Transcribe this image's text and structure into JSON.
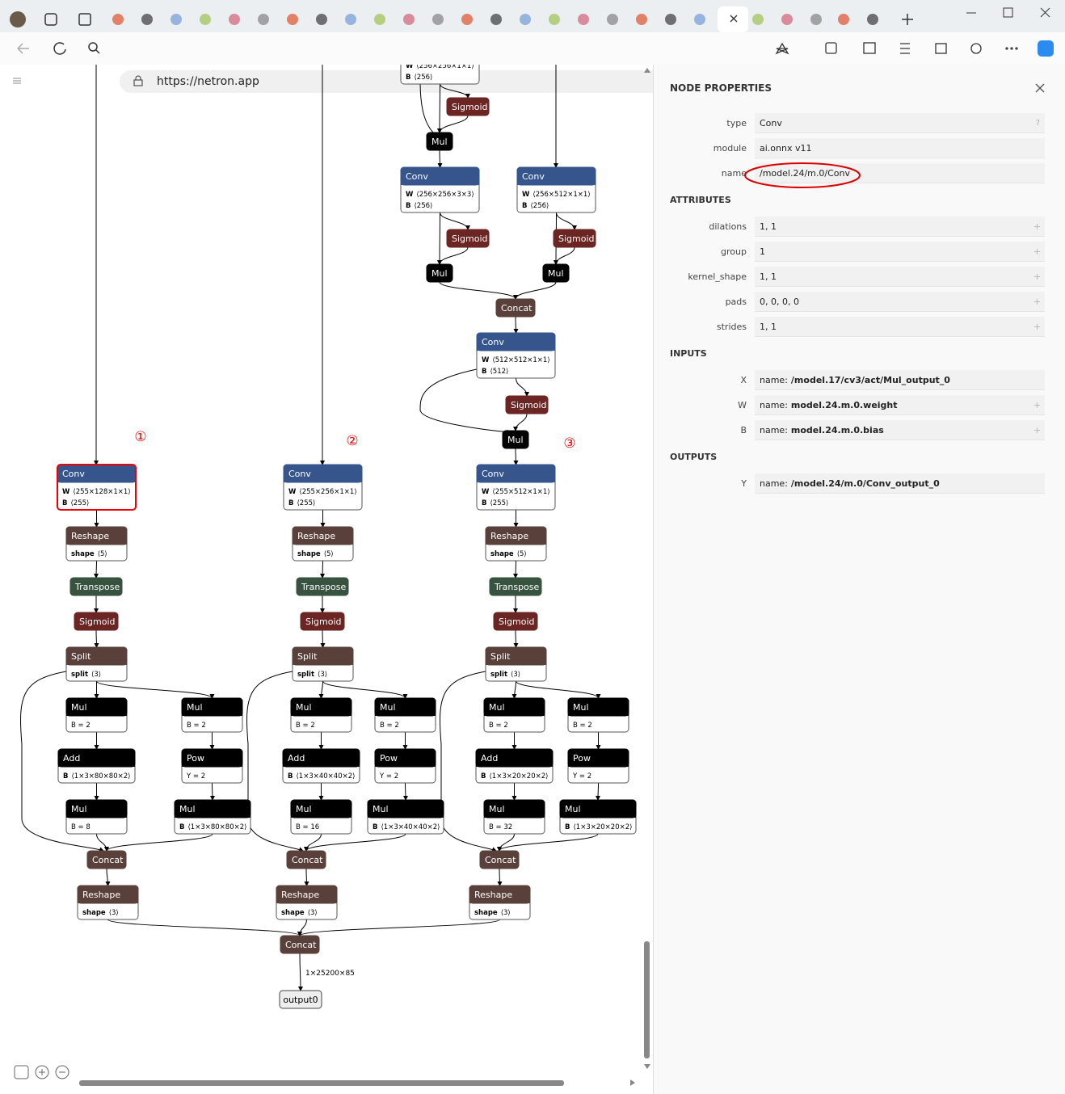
{
  "browser": {
    "url": "https://netron.app"
  },
  "graph": {
    "nodes": [
      {
        "color": "#ffffff",
        "attributes": [
          {
            "name": "W",
            "value": "⟨256×256×1×1⟩"
          },
          {
            "name": "B",
            "value": "⟨256⟩"
          }
        ]
      },
      {
        "title": "Sigmoid",
        "color": "#6b2522"
      },
      {
        "title": "Mul",
        "color": "#000000"
      },
      {
        "title": "Conv",
        "color": "#36558c",
        "attributes": [
          {
            "name": "W",
            "value": "⟨256×256×3×3⟩"
          },
          {
            "name": "B",
            "value": "⟨256⟩"
          }
        ]
      },
      {
        "title": "Conv",
        "color": "#36558c",
        "attributes": [
          {
            "name": "W",
            "value": "⟨256×512×1×1⟩"
          },
          {
            "name": "B",
            "value": "⟨256⟩"
          }
        ]
      },
      {
        "title": "Sigmoid",
        "color": "#6b2522"
      },
      {
        "title": "Sigmoid",
        "color": "#6b2522"
      },
      {
        "title": "Mul",
        "color": "#000000"
      },
      {
        "title": "Mul",
        "color": "#000000"
      },
      {
        "title": "Concat",
        "color": "#5a403a"
      },
      {
        "title": "Conv",
        "color": "#36558c",
        "attributes": [
          {
            "name": "W",
            "value": "⟨512×512×1×1⟩"
          },
          {
            "name": "B",
            "value": "⟨512⟩"
          }
        ]
      },
      {
        "title": "Sigmoid",
        "color": "#6b2522"
      },
      {
        "title": "Mul",
        "color": "#000000"
      },
      {
        "title": "Conv",
        "color": "#36558c",
        "attributes": [
          {
            "name": "W",
            "value": "⟨255×128×1×1⟩"
          },
          {
            "name": "B",
            "value": "⟨255⟩"
          }
        ]
      },
      {
        "title": "Reshape",
        "color": "#5a403a",
        "attributes": [
          {
            "name": "shape",
            "value": "⟨5⟩"
          }
        ]
      },
      {
        "title": "Transpose",
        "color": "#37523f"
      },
      {
        "title": "Sigmoid",
        "color": "#6b2522"
      },
      {
        "title": "Split",
        "color": "#5a403a",
        "attributes": [
          {
            "name": "split",
            "value": "⟨3⟩"
          }
        ]
      },
      {
        "title": "Mul",
        "color": "#000000",
        "attributes": [
          {
            "name": "",
            "value": "B = 2"
          }
        ]
      },
      {
        "title": "Mul",
        "color": "#000000",
        "attributes": [
          {
            "name": "",
            "value": "B = 2"
          }
        ]
      },
      {
        "title": "Add",
        "color": "#000000",
        "attributes": [
          {
            "name": "B",
            "value": "⟨1×3×80×80×2⟩"
          }
        ]
      },
      {
        "title": "Pow",
        "color": "#000000",
        "attributes": [
          {
            "name": "",
            "value": "Y = 2"
          }
        ]
      },
      {
        "title": "Mul",
        "color": "#000000",
        "attributes": [
          {
            "name": "",
            "value": "B = 8"
          }
        ]
      },
      {
        "title": "Mul",
        "color": "#000000",
        "attributes": [
          {
            "name": "B",
            "value": "⟨1×3×80×80×2⟩"
          }
        ]
      },
      {
        "title": "Concat",
        "color": "#5a403a"
      },
      {
        "title": "Reshape",
        "color": "#5a403a",
        "attributes": [
          {
            "name": "shape",
            "value": "⟨3⟩"
          }
        ]
      },
      {
        "title": "Conv",
        "color": "#36558c",
        "attributes": [
          {
            "name": "W",
            "value": "⟨255×256×1×1⟩"
          },
          {
            "name": "B",
            "value": "⟨255⟩"
          }
        ]
      },
      {
        "title": "Reshape",
        "color": "#5a403a",
        "attributes": [
          {
            "name": "shape",
            "value": "⟨5⟩"
          }
        ]
      },
      {
        "title": "Transpose",
        "color": "#37523f"
      },
      {
        "title": "Sigmoid",
        "color": "#6b2522"
      },
      {
        "title": "Split",
        "color": "#5a403a",
        "attributes": [
          {
            "name": "split",
            "value": "⟨3⟩"
          }
        ]
      },
      {
        "title": "Mul",
        "color": "#000000",
        "attributes": [
          {
            "name": "",
            "value": "B = 2"
          }
        ]
      },
      {
        "title": "Mul",
        "color": "#000000",
        "attributes": [
          {
            "name": "",
            "value": "B = 2"
          }
        ]
      },
      {
        "title": "Add",
        "color": "#000000",
        "attributes": [
          {
            "name": "B",
            "value": "⟨1×3×40×40×2⟩"
          }
        ]
      },
      {
        "title": "Pow",
        "color": "#000000",
        "attributes": [
          {
            "name": "",
            "value": "Y = 2"
          }
        ]
      },
      {
        "title": "Mul",
        "color": "#000000",
        "attributes": [
          {
            "name": "",
            "value": "B = 16"
          }
        ]
      },
      {
        "title": "Mul",
        "color": "#000000",
        "attributes": [
          {
            "name": "B",
            "value": "⟨1×3×40×40×2⟩"
          }
        ]
      },
      {
        "title": "Concat",
        "color": "#5a403a"
      },
      {
        "title": "Reshape",
        "color": "#5a403a",
        "attributes": [
          {
            "name": "shape",
            "value": "⟨3⟩"
          }
        ]
      },
      {
        "title": "Conv",
        "color": "#36558c",
        "attributes": [
          {
            "name": "W",
            "value": "⟨255×512×1×1⟩"
          },
          {
            "name": "B",
            "value": "⟨255⟩"
          }
        ]
      },
      {
        "title": "Reshape",
        "color": "#5a403a",
        "attributes": [
          {
            "name": "shape",
            "value": "⟨5⟩"
          }
        ]
      },
      {
        "title": "Transpose",
        "color": "#37523f"
      },
      {
        "title": "Sigmoid",
        "color": "#6b2522"
      },
      {
        "title": "Split",
        "color": "#5a403a",
        "attributes": [
          {
            "name": "split",
            "value": "⟨3⟩"
          }
        ]
      },
      {
        "title": "Mul",
        "color": "#000000",
        "attributes": [
          {
            "name": "",
            "value": "B = 2"
          }
        ]
      },
      {
        "title": "Mul",
        "color": "#000000",
        "attributes": [
          {
            "name": "",
            "value": "B = 2"
          }
        ]
      },
      {
        "title": "Add",
        "color": "#000000",
        "attributes": [
          {
            "name": "B",
            "value": "⟨1×3×20×20×2⟩"
          }
        ]
      },
      {
        "title": "Pow",
        "color": "#000000",
        "attributes": [
          {
            "name": "",
            "value": "Y = 2"
          }
        ]
      },
      {
        "title": "Mul",
        "color": "#000000",
        "attributes": [
          {
            "name": "",
            "value": "B = 32"
          }
        ]
      },
      {
        "title": "Mul",
        "color": "#000000",
        "attributes": [
          {
            "name": "B",
            "value": "⟨1×3×20×20×2⟩"
          }
        ]
      },
      {
        "title": "Concat",
        "color": "#5a403a"
      },
      {
        "title": "Reshape",
        "color": "#5a403a",
        "attributes": [
          {
            "name": "shape",
            "value": "⟨3⟩"
          }
        ]
      },
      {
        "title": "Concat",
        "color": "#5a403a"
      },
      {
        "title": "output0",
        "color": "#eeeeee"
      }
    ],
    "edge_label": "1×25200×85",
    "annotations": [
      "①",
      "②",
      "③"
    ]
  },
  "properties": {
    "title": "NODE PROPERTIES",
    "fields": [
      {
        "label": "type",
        "value": "Conv",
        "action": "?"
      },
      {
        "label": "module",
        "value": "ai.onnx v11"
      },
      {
        "label": "name",
        "value": "/model.24/m.0/Conv"
      }
    ],
    "attributes_title": "ATTRIBUTES",
    "attributes": [
      {
        "label": "dilations",
        "value": "1, 1"
      },
      {
        "label": "group",
        "value": "1"
      },
      {
        "label": "kernel_shape",
        "value": "1, 1"
      },
      {
        "label": "pads",
        "value": "0, 0, 0, 0"
      },
      {
        "label": "strides",
        "value": "1, 1"
      }
    ],
    "inputs_title": "INPUTS",
    "inputs": [
      {
        "label": "X",
        "key": "name:",
        "value": "/model.17/cv3/act/Mul_output_0"
      },
      {
        "label": "W",
        "key": "name:",
        "value": "model.24.m.0.weight"
      },
      {
        "label": "B",
        "key": "name:",
        "value": "model.24.m.0.bias"
      }
    ],
    "outputs_title": "OUTPUTS",
    "outputs": [
      {
        "label": "Y",
        "key": "name:",
        "value": "/model.24/m.0/Conv_output_0"
      }
    ]
  }
}
